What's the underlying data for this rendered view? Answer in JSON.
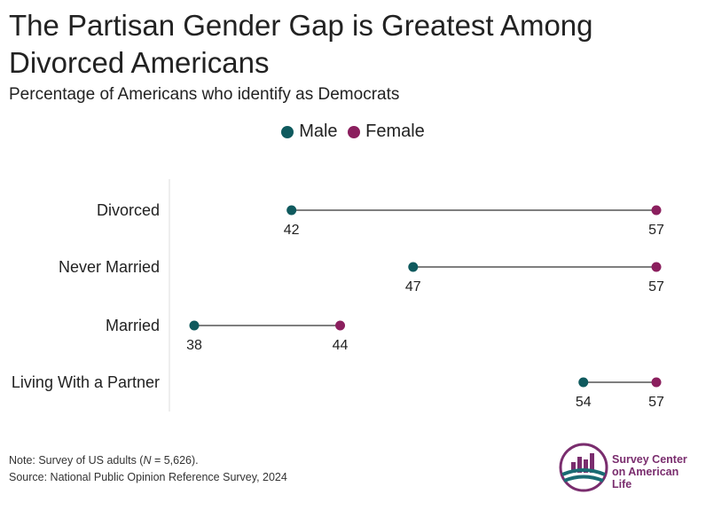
{
  "title": "The Partisan Gender Gap is Greatest Among Divorced Americans",
  "subtitle": "Percentage of Americans who identify as Democrats",
  "legend": [
    {
      "label": "Male",
      "color": "#0f5a5e"
    },
    {
      "label": "Female",
      "color": "#8b1f5e"
    }
  ],
  "chart_data": {
    "type": "dumbbell",
    "categories": [
      "Divorced",
      "Never Married",
      "Married",
      "Living With a Partner"
    ],
    "series": [
      {
        "name": "Male",
        "values": [
          42,
          47,
          38,
          54
        ]
      },
      {
        "name": "Female",
        "values": [
          57,
          57,
          44,
          57
        ]
      }
    ],
    "xlim": [
      38,
      57
    ],
    "grid": false,
    "legend_position": "top-center"
  },
  "footnote": {
    "note_prefix": "Note: Survey of US adults (",
    "n_symbol": "N",
    "note_suffix": " = 5,626).",
    "source": "Source: National Public Opinion Reference Survey, 2024"
  },
  "logo": {
    "line1": "Survey Center",
    "line2": "on American Life",
    "color_purple": "#7a2d6e",
    "color_teal": "#1a6b73"
  }
}
